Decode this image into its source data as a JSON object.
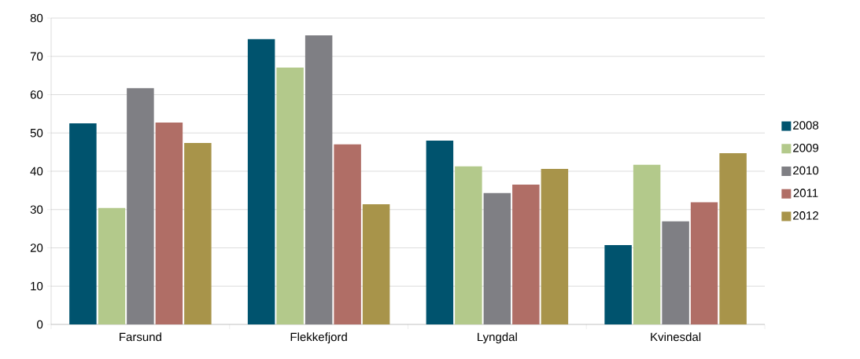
{
  "chart_data": {
    "type": "bar",
    "categories": [
      "Farsund",
      "Flekkefjord",
      "Lyngdal",
      "Kvinesdal"
    ],
    "series": [
      {
        "name": "2008",
        "color": "#00536e",
        "values": [
          52.5,
          74.5,
          48.0,
          20.7
        ]
      },
      {
        "name": "2009",
        "color": "#b3c98b",
        "values": [
          30.4,
          67.1,
          41.3,
          41.7
        ]
      },
      {
        "name": "2010",
        "color": "#7f7f84",
        "values": [
          61.7,
          75.5,
          34.3,
          26.9
        ]
      },
      {
        "name": "2011",
        "color": "#b06e66",
        "values": [
          52.7,
          47.0,
          36.5,
          31.9
        ]
      },
      {
        "name": "2012",
        "color": "#a8944a",
        "values": [
          47.4,
          31.4,
          40.6,
          44.7
        ]
      }
    ],
    "ylim": [
      0,
      80
    ],
    "yticks": [
      0,
      10,
      20,
      30,
      40,
      50,
      60,
      70,
      80
    ],
    "grid": "y",
    "legend": "right"
  }
}
